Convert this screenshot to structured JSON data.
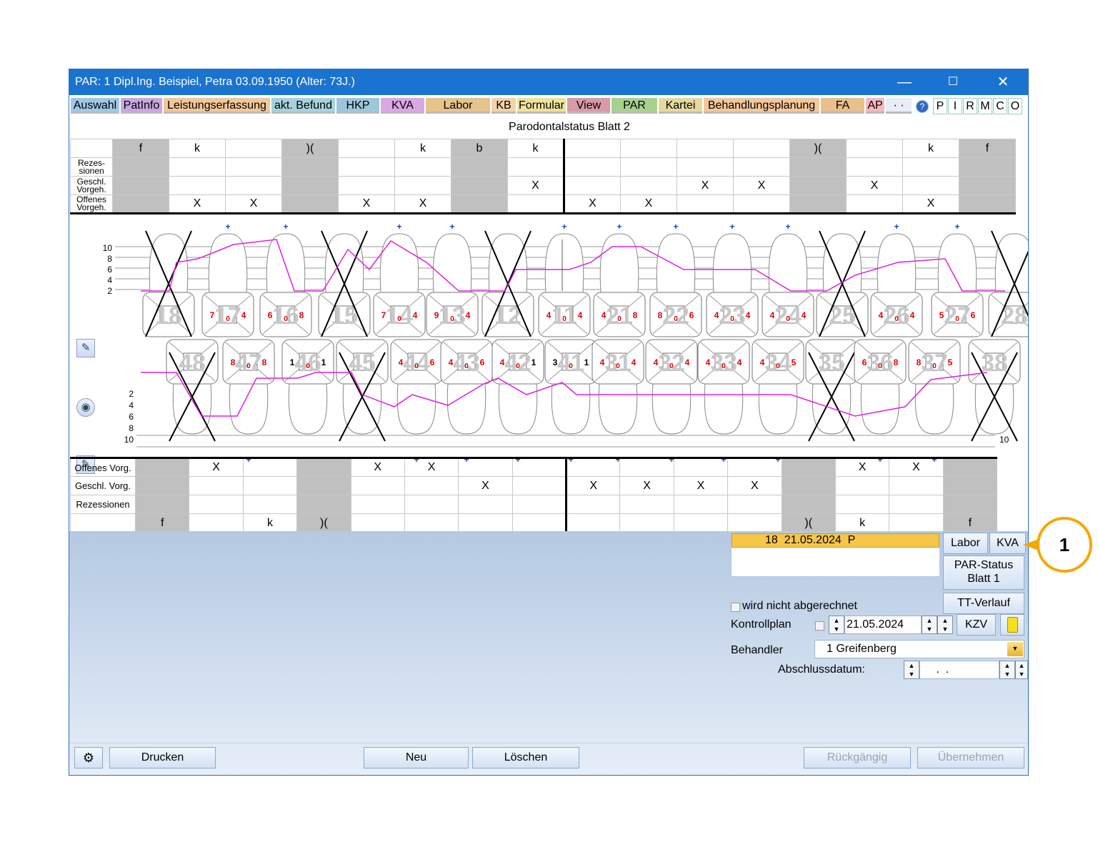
{
  "window": {
    "title": "PAR: 1  Dipl.Ing. Beispiel, Petra  03.09.1950 (Alter: 73J.)"
  },
  "menu": {
    "tabs": [
      {
        "label": "Auswahl",
        "color": "#9ec8e6"
      },
      {
        "label": "PatInfo",
        "color": "#c9a8e0"
      },
      {
        "label": "Leistungserfassung",
        "color": "#f2c79a"
      },
      {
        "label": "akt. Befund",
        "color": "#a7d2dc"
      },
      {
        "label": "HKP",
        "color": "#9cc7da"
      },
      {
        "label": "KVA",
        "color": "#d9a8e4"
      },
      {
        "label": "Labor",
        "color": "#e8c48c"
      },
      {
        "label": "KB",
        "color": "#f5d2a8"
      },
      {
        "label": "Formular",
        "color": "#f0e29a"
      },
      {
        "label": "View",
        "color": "#d79aa6"
      },
      {
        "label": "PAR",
        "color": "#a9d18e"
      },
      {
        "label": "Kartei",
        "color": "#e6d9a0"
      },
      {
        "label": "Behandlungsplanung",
        "color": "#f5c79c"
      },
      {
        "label": "FA",
        "color": "#e9bf8a"
      },
      {
        "label": "AP",
        "color": "#f6b8c0"
      }
    ],
    "small_buttons": [
      "?",
      "P",
      "I",
      "R",
      "M",
      "C",
      "O"
    ]
  },
  "sheet": {
    "title": "Parodontalstatus Blatt 2",
    "upper_table": {
      "row_labels": [
        "Rezes-\nsionen",
        "Geschl.\nVorgeh.",
        "Offenes\nVorgeh."
      ],
      "header": [
        "f",
        "k",
        "",
        ")(",
        "",
        "k",
        "b",
        "k",
        "",
        "",
        "",
        "",
        ")(",
        "",
        "k",
        "f"
      ],
      "gray": [
        0,
        3,
        6,
        12,
        15
      ],
      "rows": [
        [
          "",
          "",
          "",
          "",
          "",
          "",
          "",
          "",
          "",
          "",
          "",
          "",
          "",
          "",
          "",
          ""
        ],
        [
          "",
          "",
          "",
          "",
          "",
          "",
          "",
          "X",
          "",
          "",
          "X",
          "X",
          "",
          "X",
          "",
          ""
        ],
        [
          "",
          "X",
          "X",
          "",
          "X",
          "X",
          "",
          "",
          "X",
          "X",
          "",
          "",
          "",
          "",
          "X",
          ""
        ]
      ]
    },
    "upper_teeth": [
      {
        "num": "18",
        "vals": [
          " ",
          " ",
          " "
        ],
        "missing": true
      },
      {
        "num": "17",
        "vals": [
          "7",
          "0",
          "4"
        ],
        "missing": false
      },
      {
        "num": "16",
        "vals": [
          "6",
          "0",
          "8"
        ],
        "missing": false
      },
      {
        "num": "15",
        "vals": [
          " ",
          " ",
          " "
        ],
        "missing": true
      },
      {
        "num": "14",
        "vals": [
          "7",
          "0",
          "4"
        ],
        "missing": false
      },
      {
        "num": "13",
        "vals": [
          "9",
          "0",
          "4"
        ],
        "missing": false
      },
      {
        "num": "12",
        "vals": [
          " ",
          " ",
          " "
        ],
        "missing": true
      },
      {
        "num": "11",
        "vals": [
          "4",
          "0",
          "4"
        ],
        "missing": false
      },
      {
        "num": "21",
        "vals": [
          "4",
          "0",
          "8"
        ],
        "missing": false
      },
      {
        "num": "22",
        "vals": [
          "8",
          "0",
          "6"
        ],
        "missing": false
      },
      {
        "num": "23",
        "vals": [
          "4",
          "0",
          "4"
        ],
        "missing": false
      },
      {
        "num": "24",
        "vals": [
          "4",
          "0",
          "4"
        ],
        "missing": false
      },
      {
        "num": "25",
        "vals": [
          " ",
          " ",
          " "
        ],
        "missing": true
      },
      {
        "num": "26",
        "vals": [
          "4",
          "0",
          "4"
        ],
        "missing": false
      },
      {
        "num": "27",
        "vals": [
          "5",
          "0",
          "6"
        ],
        "missing": false
      },
      {
        "num": "28",
        "vals": [
          " ",
          " ",
          " "
        ],
        "missing": true
      }
    ],
    "lower_teeth": [
      {
        "num": "48",
        "vals": [
          " ",
          " ",
          " "
        ],
        "missing": true
      },
      {
        "num": "47",
        "vals": [
          "8",
          "0",
          "8"
        ],
        "missing": false
      },
      {
        "num": "46",
        "vals": [
          "1",
          "0",
          "1"
        ],
        "missing": false
      },
      {
        "num": "45",
        "vals": [
          " ",
          " ",
          " "
        ],
        "missing": true
      },
      {
        "num": "44",
        "vals": [
          "4",
          "0",
          "6"
        ],
        "missing": false
      },
      {
        "num": "43",
        "vals": [
          "4",
          "0",
          "6"
        ],
        "missing": false
      },
      {
        "num": "42",
        "vals": [
          "4",
          "0",
          "1"
        ],
        "missing": false
      },
      {
        "num": "41",
        "vals": [
          "3",
          "0",
          "1"
        ],
        "missing": false
      },
      {
        "num": "31",
        "vals": [
          "4",
          "0",
          "4"
        ],
        "missing": false
      },
      {
        "num": "32",
        "vals": [
          "4",
          "0",
          "4"
        ],
        "missing": false
      },
      {
        "num": "33",
        "vals": [
          "4",
          "0",
          "4"
        ],
        "missing": false
      },
      {
        "num": "34",
        "vals": [
          "4",
          "0",
          "5"
        ],
        "missing": false
      },
      {
        "num": "35",
        "vals": [
          " ",
          " ",
          " "
        ],
        "missing": true
      },
      {
        "num": "36",
        "vals": [
          "6",
          "0",
          "8"
        ],
        "missing": false
      },
      {
        "num": "37",
        "vals": [
          "8",
          "0",
          "5"
        ],
        "missing": false
      },
      {
        "num": "38",
        "vals": [
          " ",
          " ",
          " "
        ],
        "missing": true
      }
    ],
    "scale_labels": [
      "10",
      "8",
      "6",
      "4",
      "2"
    ],
    "lower_scale_labels": [
      "2",
      "4",
      "6",
      "8",
      "10"
    ],
    "lower_table": {
      "row_labels": [
        "Offenes Vorg.",
        "Geschl. Vorg.",
        "Rezessionen"
      ],
      "footer": [
        "f",
        "",
        "k",
        ")(",
        "",
        "",
        "",
        "",
        "",
        "",
        "",
        "",
        ")(",
        "k",
        "",
        "f"
      ],
      "gray": [
        0,
        3,
        12,
        15
      ],
      "rows": [
        [
          "",
          "X",
          "",
          "",
          "X",
          "X",
          "",
          "",
          "",
          "",
          "",
          "",
          "",
          "X",
          "X",
          ""
        ],
        [
          "",
          "",
          "",
          "",
          "",
          "",
          "X",
          "",
          "X",
          "X",
          "X",
          "X",
          "",
          "",
          "",
          ""
        ],
        [
          "",
          "",
          "",
          "",
          "",
          "",
          "",
          "",
          "",
          "",
          "",
          "",
          "",
          "",
          "",
          ""
        ]
      ]
    },
    "upper_plus": [
      1,
      2,
      4,
      5,
      7,
      8,
      9,
      10,
      11,
      13,
      14
    ],
    "lower_plus": [
      1,
      2,
      4,
      5,
      6,
      7,
      8,
      9,
      10,
      11,
      13,
      14
    ]
  },
  "lower": {
    "list_item": "18  21.05.2024  P",
    "buttons": {
      "labor": "Labor",
      "kva": "KVA",
      "par_status": "PAR-Status\nBlatt 1",
      "tt_verlauf": "TT-Verlauf",
      "kzv": "KZV"
    },
    "not_billed": "wird nicht abgerechnet",
    "kontrollplan_label": "Kontrollplan",
    "kontrollplan_date": "21.05.2024",
    "behandler_label": "Behandler",
    "behandler_value": "1 Greifenberg",
    "abschluss_label": "Abschlussdatum:",
    "abschluss_value": " .  ."
  },
  "footer": {
    "drucken": "Drucken",
    "neu": "Neu",
    "loeschen": "Löschen",
    "rueckgaengig": "Rückgängig",
    "uebernehmen": "Übernehmen"
  },
  "callout": "1"
}
